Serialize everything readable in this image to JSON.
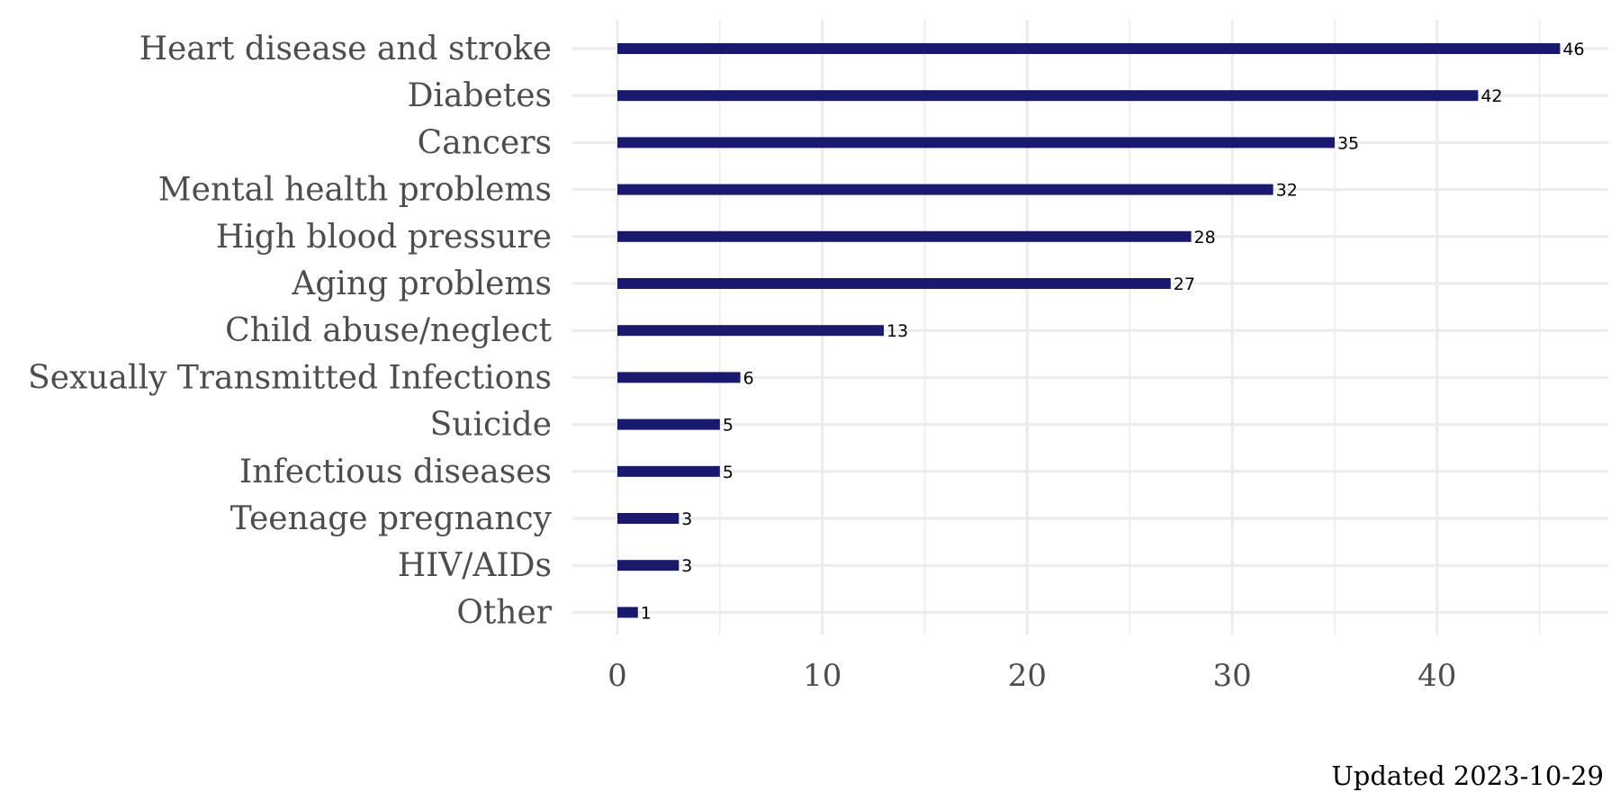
{
  "chart_data": {
    "type": "bar",
    "orientation": "horizontal",
    "categories": [
      "Heart disease and stroke",
      "Diabetes",
      "Cancers",
      "Mental health problems",
      "High blood pressure",
      "Aging problems",
      "Child abuse/neglect",
      "Sexually Transmitted Infections",
      "Suicide",
      "Infectious diseases",
      "Teenage pregnancy",
      "HIV/AIDs",
      "Other"
    ],
    "values": [
      46,
      42,
      35,
      32,
      28,
      27,
      13,
      6,
      5,
      5,
      3,
      3,
      1
    ],
    "data_labels": [
      "46",
      "42",
      "35",
      "32",
      "28",
      "27",
      "13",
      "6",
      "5",
      "5",
      "3",
      "3",
      "1"
    ],
    "x_ticks": [
      0,
      10,
      20,
      30,
      40
    ],
    "x_tick_labels": [
      "0",
      "10",
      "20",
      "30",
      "40"
    ],
    "xlim": [
      0,
      48
    ],
    "grid": true,
    "legend": "none",
    "title": "",
    "xlabel": "",
    "ylabel": "",
    "caption": "Updated 2023-10-29",
    "bar_color": "#191970",
    "grid_color": "#ebebeb"
  }
}
